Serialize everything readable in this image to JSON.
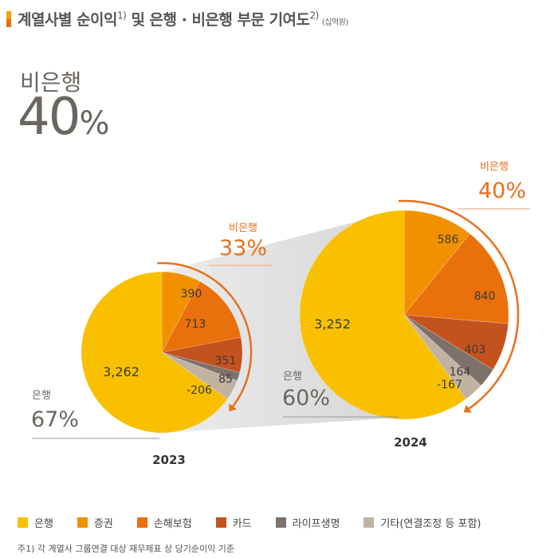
{
  "header": {
    "title": "계열사별 순이익",
    "sup1": "1)",
    "title2": "및 은행 · 비은행 부문 기여도",
    "sup2": "2)",
    "unit": "(십억원)"
  },
  "headline": {
    "label": "비은행",
    "value": "40",
    "pct": "%"
  },
  "colors": {
    "은행": "#F9C000",
    "증권": "#F29100",
    "손해보험": "#EA700C",
    "카드": "#C4521E",
    "라이프생명": "#7C726A",
    "기타": "#C2B2A2",
    "accent": "#E8701A"
  },
  "chart_data": [
    {
      "type": "pie",
      "title": "2023",
      "slices": [
        {
          "category": "증권",
          "value": 390,
          "label": "390"
        },
        {
          "category": "손해보험",
          "value": 713,
          "label": "713"
        },
        {
          "category": "카드",
          "value": 351,
          "label": "351"
        },
        {
          "category": "라이프생명",
          "value": 85,
          "label": "85"
        },
        {
          "category": "기타",
          "value": -206,
          "label": "-206"
        },
        {
          "category": "은행",
          "value": 3262,
          "label": "3,262"
        }
      ],
      "annotations": {
        "nonbank_label": "비은행",
        "nonbank_pct": "33%",
        "bank_label": "은행",
        "bank_pct": "67%"
      }
    },
    {
      "type": "pie",
      "title": "2024",
      "slices": [
        {
          "category": "증권",
          "value": 586,
          "label": "586"
        },
        {
          "category": "손해보험",
          "value": 840,
          "label": "840"
        },
        {
          "category": "카드",
          "value": 403,
          "label": "403"
        },
        {
          "category": "라이프생명",
          "value": 164,
          "label": "164"
        },
        {
          "category": "기타",
          "value": -167,
          "label": "-167"
        },
        {
          "category": "은행",
          "value": 3252,
          "label": "3,252"
        }
      ],
      "annotations": {
        "nonbank_label": "비은행",
        "nonbank_pct": "40%",
        "bank_label": "은행",
        "bank_pct": "60%"
      }
    }
  ],
  "legend": [
    {
      "key": "은행",
      "label": "은행"
    },
    {
      "key": "증권",
      "label": "증권"
    },
    {
      "key": "손해보험",
      "label": "손해보험"
    },
    {
      "key": "카드",
      "label": "카드"
    },
    {
      "key": "라이프생명",
      "label": "라이프생명"
    },
    {
      "key": "기타",
      "label": "기타(연결조정 등 포함)"
    }
  ],
  "footnote": "주1) 각 계열사 그룹연결 대상 재무제표 상 당기순이익 기준"
}
